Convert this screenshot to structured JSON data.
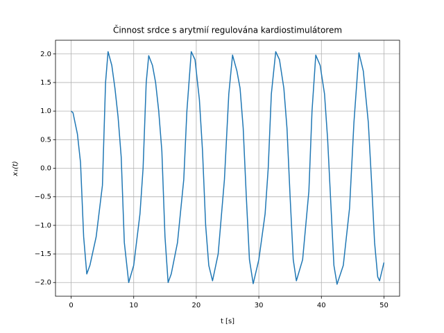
{
  "chart_data": {
    "type": "line",
    "title": "Činnost srdce s arytmií regulována kardiostimulátorem",
    "x_label": "t [s]",
    "y_label": "x₁(t)",
    "xlim": [
      -2.5,
      52.5
    ],
    "ylim": [
      -2.24,
      2.24
    ],
    "xticks": [
      0,
      10,
      20,
      30,
      40,
      50
    ],
    "yticks": [
      {
        "value": -2,
        "label": "−2.0"
      },
      {
        "value": -1.5,
        "label": "−1.5"
      },
      {
        "value": -1,
        "label": "−1.0"
      },
      {
        "value": -0.5,
        "label": "−0.5"
      },
      {
        "value": 0,
        "label": "0.0"
      },
      {
        "value": 0.5,
        "label": "0.5"
      },
      {
        "value": 1,
        "label": "1.0"
      },
      {
        "value": 1.5,
        "label": "1.5"
      },
      {
        "value": 2,
        "label": "2.0"
      }
    ],
    "grid": true,
    "series": [
      {
        "color": "#1f77b4",
        "x": [
          0,
          0.3,
          1,
          1.5,
          2,
          2.5,
          3,
          4,
          5,
          5.5,
          5.9,
          6.5,
          7,
          7.5,
          8,
          8.5,
          9.2,
          10,
          11,
          11.5,
          12,
          12.4,
          13,
          13.5,
          14,
          14.5,
          15,
          15.5,
          16,
          17,
          18,
          18.5,
          19.2,
          19.8,
          20.5,
          21,
          21.5,
          22,
          22.6,
          23.5,
          24.5,
          25.2,
          25.8,
          26.5,
          27,
          27.5,
          28,
          28.5,
          29.1,
          30,
          31,
          31.5,
          32,
          32.7,
          33.3,
          34,
          34.5,
          35,
          35.5,
          36,
          37,
          38,
          38.5,
          39.1,
          39.8,
          40.5,
          41,
          41.5,
          42,
          42.5,
          43.5,
          44.5,
          45.2,
          46,
          46.7,
          47.5,
          48,
          48.5,
          49,
          49.3,
          50
        ],
        "values": [
          1.0,
          0.97,
          0.6,
          0.1,
          -1.2,
          -1.85,
          -1.7,
          -1.2,
          -0.3,
          1.5,
          2.04,
          1.8,
          1.4,
          0.9,
          0.2,
          -1.3,
          -2.0,
          -1.7,
          -0.8,
          0,
          1.5,
          1.97,
          1.8,
          1.5,
          1.0,
          0.3,
          -1.2,
          -2.0,
          -1.85,
          -1.3,
          -0.2,
          1.0,
          2.04,
          1.9,
          1.2,
          0.3,
          -1.0,
          -1.7,
          -1.97,
          -1.5,
          -0.2,
          1.3,
          1.98,
          1.7,
          1.4,
          0.7,
          -0.5,
          -1.6,
          -2.02,
          -1.6,
          -0.8,
          0,
          1.3,
          2.04,
          1.9,
          1.4,
          0.7,
          -0.5,
          -1.6,
          -1.97,
          -1.6,
          -0.4,
          1.0,
          1.98,
          1.8,
          1.3,
          0.5,
          -0.6,
          -1.7,
          -2.03,
          -1.7,
          -0.7,
          0.8,
          2.02,
          1.7,
          0.8,
          -0.2,
          -1.3,
          -1.9,
          -1.97,
          -1.65
        ]
      }
    ]
  }
}
